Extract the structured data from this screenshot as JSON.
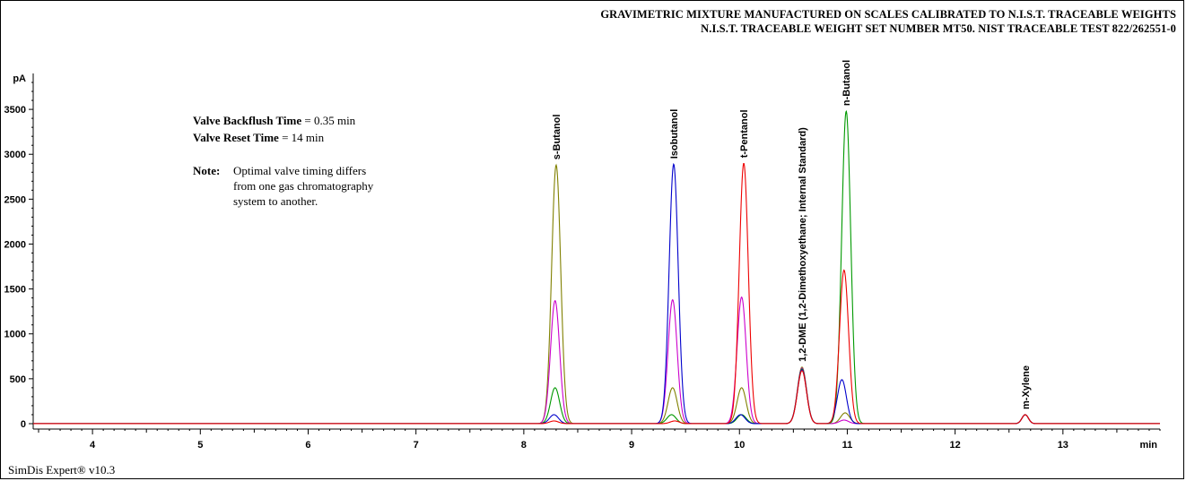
{
  "header": {
    "line1": "GRAVIMETRIC MIXTURE MANUFACTURED ON SCALES CALIBRATED TO N.I.S.T. TRACEABLE WEIGHTS",
    "line2": "N.I.S.T. TRACEABLE WEIGHT SET NUMBER MT50. NIST TRACEABLE TEST 822/262551-0"
  },
  "conditions": {
    "backflush_label": "Valve Backflush Time",
    "backflush_value": " = 0.35 min",
    "reset_label": "Valve Reset Time",
    "reset_value": " = 14 min",
    "note_label": "Note:",
    "note_lines": [
      "Optimal valve timing differs",
      "from one gas chromatography",
      "system to another."
    ]
  },
  "footer": {
    "software": "SimDis Expert® v10.3"
  },
  "chart_data": {
    "type": "line",
    "ylabel": "pA",
    "xlabel": "min",
    "xlim": [
      3.45,
      13.9
    ],
    "ylim": [
      -60,
      3900
    ],
    "xticks": [
      4,
      5,
      6,
      7,
      8,
      9,
      10,
      11,
      12,
      13
    ],
    "yticks": [
      0,
      500,
      1000,
      1500,
      2000,
      2500,
      3000,
      3500
    ],
    "baseline": 0,
    "peak_labels": [
      {
        "name": "s-Butanol",
        "rt": 8.3
      },
      {
        "name": "Isobutanol",
        "rt": 9.39
      },
      {
        "name": "t-Pentanol",
        "rt": 10.04
      },
      {
        "name": "1,2-DME (1,2-Dimethoxyethane; Internal Standard)",
        "rt": 10.58
      },
      {
        "name": "n-Butanol",
        "rt": 10.99
      },
      {
        "name": "m-Xylene",
        "rt": 12.65
      }
    ],
    "series": [
      {
        "color": "#808000",
        "peaks": [
          [
            8.3,
            2880
          ],
          [
            9.38,
            400
          ],
          [
            10.02,
            400
          ],
          [
            10.58,
            630
          ],
          [
            10.98,
            120
          ],
          [
            12.65,
            100
          ]
        ]
      },
      {
        "color": "#cc00cc",
        "peaks": [
          [
            8.29,
            1370
          ],
          [
            9.38,
            1380
          ],
          [
            10.02,
            1410
          ],
          [
            10.58,
            620
          ],
          [
            10.97,
            40
          ],
          [
            12.65,
            100
          ]
        ]
      },
      {
        "color": "#009900",
        "peaks": [
          [
            8.29,
            400
          ],
          [
            9.37,
            100
          ],
          [
            10.02,
            100
          ],
          [
            10.58,
            610
          ],
          [
            10.99,
            3480
          ],
          [
            12.65,
            100
          ]
        ]
      },
      {
        "color": "#0000cc",
        "peaks": [
          [
            8.28,
            100
          ],
          [
            9.39,
            2890
          ],
          [
            10.01,
            100
          ],
          [
            10.58,
            600
          ],
          [
            10.95,
            490
          ],
          [
            12.65,
            100
          ]
        ]
      },
      {
        "color": "#ee0000",
        "peaks": [
          [
            8.28,
            30
          ],
          [
            9.4,
            30
          ],
          [
            10.04,
            2900
          ],
          [
            10.58,
            590
          ],
          [
            10.97,
            1710
          ],
          [
            12.65,
            100
          ]
        ]
      }
    ]
  }
}
